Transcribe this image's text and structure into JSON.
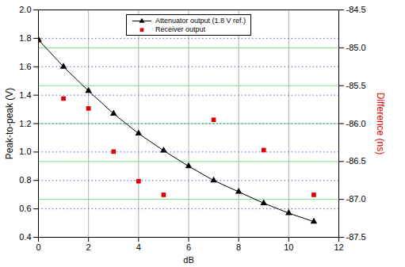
{
  "chart_data": {
    "type": "line",
    "x": [
      0,
      1,
      2,
      3,
      4,
      5,
      6,
      7,
      8,
      9,
      10,
      11
    ],
    "xlim": [
      0,
      12
    ],
    "xticks": [
      0,
      2,
      4,
      6,
      8,
      10,
      12
    ],
    "x_label": "dB",
    "y_label": "Peak-to-peak (V)",
    "ylim": [
      0.4,
      2.0
    ],
    "yticks": [
      0.4,
      0.6,
      0.8,
      {
        "value": 1,
        "label": "1.0"
      },
      1.2,
      1.4,
      1.6,
      1.8,
      {
        "value": 2,
        "label": "2.0"
      }
    ],
    "y2_label": "Difference (ns)",
    "y2lim": [
      -87.5,
      -84.5
    ],
    "y2ticks": [
      -87.5,
      {
        "value": -87,
        "label": "-87.0"
      },
      -86.5,
      {
        "value": -86,
        "label": "-86.0"
      },
      -85.5,
      {
        "value": -85,
        "label": "-85.0"
      },
      -84.5
    ],
    "grid": true,
    "legend": "top",
    "series": [
      {
        "name": "Attenuator output (1.8 V ref.)",
        "type": "line",
        "marker": "triangle",
        "line_style": "solid",
        "color": "#000000",
        "values": [
          1.79,
          1.6,
          1.43,
          1.27,
          1.13,
          1.01,
          0.9,
          0.8,
          0.72,
          0.64,
          0.57,
          0.51
        ]
      },
      {
        "name": "Receiver output",
        "type": "scatter",
        "marker": "square",
        "color": "#e00000",
        "axis": "y2",
        "values": [
          -84.9,
          -85.67,
          -85.8,
          -86.37,
          -86.76,
          -86.94,
          null,
          -85.95,
          null,
          -86.35,
          null,
          -86.94
        ]
      }
    ]
  }
}
